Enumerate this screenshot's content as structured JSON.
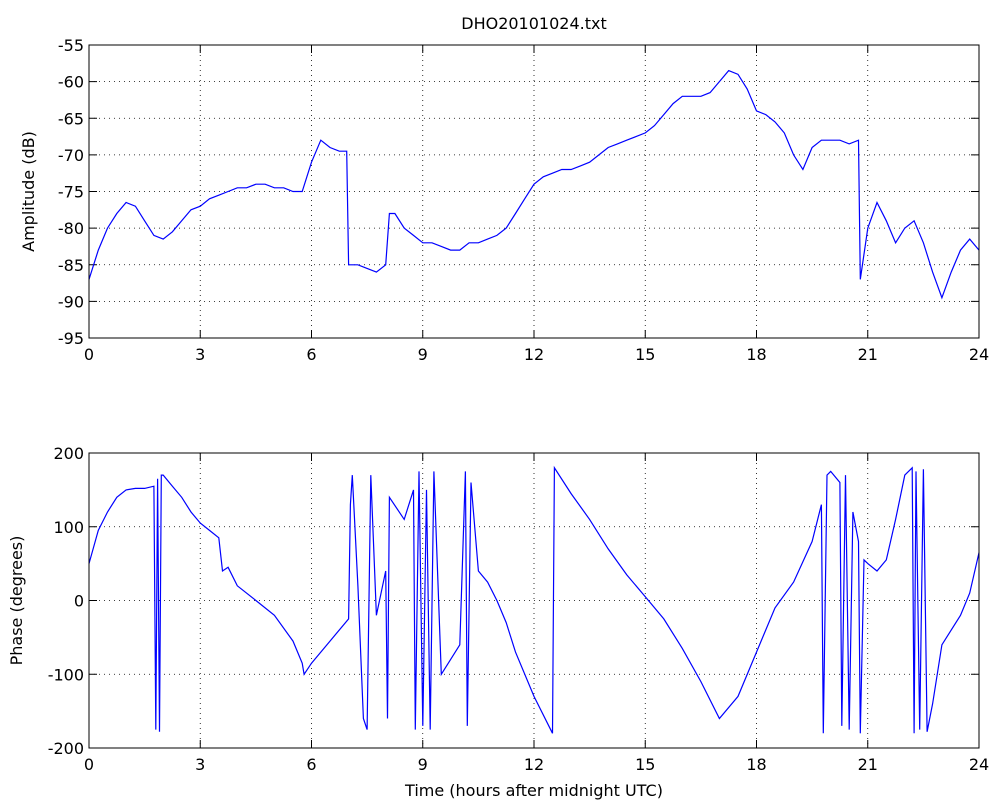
{
  "chart_data": [
    {
      "type": "line",
      "title": "DHO20101024.txt",
      "ylabel": "Amplitude (dB)",
      "x": [
        0,
        0.25,
        0.5,
        0.75,
        1,
        1.25,
        1.5,
        1.75,
        2,
        2.25,
        2.5,
        2.75,
        3,
        3.25,
        3.5,
        3.75,
        4,
        4.25,
        4.5,
        4.75,
        5,
        5.25,
        5.5,
        5.75,
        6,
        6.25,
        6.5,
        6.75,
        6.95,
        7,
        7.25,
        7.5,
        7.75,
        8,
        8.1,
        8.25,
        8.5,
        8.75,
        9,
        9.25,
        9.5,
        9.75,
        10,
        10.25,
        10.5,
        10.75,
        11,
        11.25,
        11.5,
        11.75,
        12,
        12.25,
        12.5,
        12.75,
        13,
        13.25,
        13.5,
        13.75,
        14,
        14.25,
        14.5,
        14.75,
        15,
        15.25,
        15.5,
        15.75,
        16,
        16.25,
        16.5,
        16.75,
        17,
        17.25,
        17.5,
        17.75,
        18,
        18.25,
        18.5,
        18.75,
        19,
        19.25,
        19.5,
        19.75,
        20,
        20.25,
        20.5,
        20.75,
        20.8,
        21,
        21.25,
        21.5,
        21.75,
        22,
        22.25,
        22.5,
        22.75,
        23,
        23.25,
        23.5,
        23.75,
        24
      ],
      "series": [
        {
          "color": "#0000ff",
          "values": [
            -87,
            -83,
            -80,
            -78,
            -76.5,
            -77,
            -79,
            -81,
            -81.5,
            -80.5,
            -79,
            -77.5,
            -77,
            -76,
            -75.5,
            -75,
            -74.5,
            -74.5,
            -74,
            -74,
            -74.5,
            -74.5,
            -75,
            -75,
            -71,
            -68,
            -69,
            -69.5,
            -69.5,
            -85,
            -85,
            -85.5,
            -86,
            -85,
            -78,
            -78,
            -80,
            -81,
            -82,
            -82,
            -82.5,
            -83,
            -83,
            -82,
            -82,
            -81.5,
            -81,
            -80,
            -78,
            -76,
            -74,
            -73,
            -72.5,
            -72,
            -72,
            -71.5,
            -71,
            -70,
            -69,
            -68.5,
            -68,
            -67.5,
            -67,
            -66,
            -64.5,
            -63,
            -62,
            -62,
            -62,
            -61.5,
            -60,
            -58.5,
            -59,
            -61,
            -64,
            -64.5,
            -65.5,
            -67,
            -70,
            -72,
            -69,
            -68,
            -68,
            -68,
            -68.5,
            -68,
            -87,
            -80,
            -76.5,
            -79,
            -82,
            -80,
            -79,
            -82,
            -86,
            -89.5,
            -86,
            -83,
            -81.5,
            -83
          ]
        }
      ],
      "xlim": [
        0,
        24
      ],
      "xticks": [
        0,
        3,
        6,
        9,
        12,
        15,
        18,
        21,
        24
      ],
      "ylim": [
        -95,
        -55
      ],
      "yticks": [
        -95,
        -90,
        -85,
        -80,
        -75,
        -70,
        -65,
        -60,
        -55
      ],
      "grid": true
    },
    {
      "type": "line",
      "xlabel": "Time (hours after midnight UTC)",
      "ylabel": "Phase (degrees)",
      "x": [
        0,
        0.25,
        0.5,
        0.75,
        1,
        1.25,
        1.5,
        1.75,
        1.8,
        1.85,
        1.9,
        1.95,
        2,
        2.25,
        2.5,
        2.75,
        3,
        3.25,
        3.5,
        3.6,
        3.75,
        4,
        4.5,
        5,
        5.5,
        5.75,
        5.8,
        6,
        6.5,
        7,
        7.05,
        7.1,
        7.25,
        7.4,
        7.5,
        7.6,
        7.75,
        8,
        8.05,
        8.1,
        8.5,
        8.75,
        8.8,
        8.9,
        9,
        9.1,
        9.2,
        9.3,
        9.5,
        10,
        10.15,
        10.2,
        10.3,
        10.5,
        10.75,
        11,
        11.25,
        11.5,
        12,
        12.5,
        12.55,
        13,
        13.5,
        14,
        14.5,
        15,
        15.5,
        16,
        16.5,
        17,
        17.5,
        18,
        18.5,
        19,
        19.5,
        19.75,
        19.8,
        19.9,
        20,
        20.25,
        20.3,
        20.4,
        20.5,
        20.6,
        20.75,
        20.8,
        20.9,
        21,
        21.25,
        21.5,
        21.75,
        22,
        22.2,
        22.25,
        22.3,
        22.4,
        22.5,
        22.6,
        22.75,
        23,
        23.5,
        23.75,
        24
      ],
      "series": [
        {
          "color": "#0000ff",
          "values": [
            50,
            95,
            120,
            140,
            150,
            152,
            152,
            155,
            -175,
            165,
            -178,
            170,
            170,
            155,
            140,
            120,
            105,
            95,
            85,
            40,
            45,
            20,
            0,
            -20,
            -55,
            -85,
            -100,
            -85,
            -55,
            -25,
            130,
            170,
            20,
            -160,
            -175,
            170,
            -20,
            40,
            -160,
            140,
            110,
            150,
            -175,
            175,
            -170,
            150,
            -175,
            175,
            -100,
            -60,
            175,
            -170,
            160,
            40,
            25,
            0,
            -30,
            -70,
            -130,
            -180,
            180,
            145,
            110,
            70,
            35,
            5,
            -25,
            -65,
            -110,
            -160,
            -130,
            -70,
            -10,
            25,
            80,
            130,
            -180,
            170,
            175,
            160,
            -170,
            170,
            -175,
            120,
            80,
            -180,
            55,
            50,
            40,
            55,
            110,
            170,
            180,
            -180,
            175,
            -175,
            178,
            -178,
            -140,
            -60,
            -20,
            10,
            65
          ]
        }
      ],
      "xlim": [
        0,
        24
      ],
      "xticks": [
        0,
        3,
        6,
        9,
        12,
        15,
        18,
        21,
        24
      ],
      "ylim": [
        -200,
        200
      ],
      "yticks": [
        -200,
        -100,
        0,
        100,
        200
      ],
      "grid": true
    }
  ]
}
